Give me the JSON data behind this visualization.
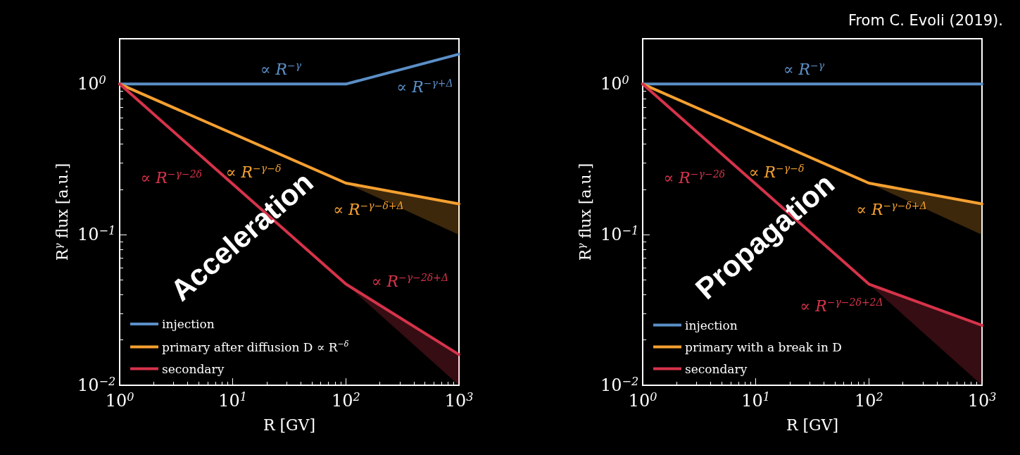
{
  "chart_data": [
    {
      "type": "line",
      "xlabel": "R [GV]",
      "ylabel": "R$^{γ}$ flux [a.u.]",
      "log": "xy",
      "xlim": [
        1,
        1000
      ],
      "ylim": [
        0.01,
        2
      ],
      "xticks": [
        {
          "value": 1,
          "label": "10$^{0}$"
        },
        {
          "value": 10,
          "label": "10$^{1}$"
        },
        {
          "value": 100,
          "label": "10$^{2}$"
        },
        {
          "value": 1000,
          "label": "10$^{3}$"
        }
      ],
      "yticks": [
        {
          "value": 0.01,
          "label": "10$^{−2}$"
        },
        {
          "value": 0.1,
          "label": "10$^{−1}$"
        },
        {
          "value": 1,
          "label": "10$^{0}$"
        }
      ],
      "grid": false,
      "legend": "bottom left",
      "marker": "none",
      "line_style": "solid",
      "x": [
        1,
        100,
        1000
      ],
      "series": [
        {
          "name": "injection",
          "color": "#5b8fc7",
          "values": [
            1,
            1,
            1.58
          ]
        },
        {
          "name": "primary after diffusion D ∝ R$^{−δ}$",
          "color": "#f5a030",
          "values": [
            1,
            0.22,
            0.16
          ],
          "lower": [
            null,
            0.22,
            0.1
          ],
          "upper": [
            null,
            0.22,
            0.16
          ]
        },
        {
          "name": "secondary",
          "color": "#d6334a",
          "values": [
            1,
            0.047,
            0.016
          ],
          "lower": [
            null,
            0.047,
            0.01
          ],
          "upper": [
            null,
            0.047,
            0.016
          ]
        }
      ],
      "annotations": [
        "Acceleration",
        {
          "text": "∝ R$^{−γ}$",
          "x": 15.6,
          "y": 1
        },
        {
          "text": "∝ R$^{−γ+Δ}$",
          "x": 250,
          "y": 1.2
        },
        {
          "text": "∝ R$^{−γ−δ}$",
          "x": 30,
          "y": 0.327
        },
        {
          "text": "∝ R$^{−γ−δ+Δ}$",
          "x": 365,
          "y": 0.184
        },
        {
          "text": "∝ R$^{−γ−2δ}$",
          "x": 6,
          "y": 0.3
        },
        {
          "text": "∝ R$^{−γ−2δ+Δ}$",
          "x": 150,
          "y": 0.039
        }
      ]
    },
    {
      "type": "line",
      "xlabel": "R [GV]",
      "ylabel": "R$^{γ}$ flux [a.u.]",
      "log": "xy",
      "xlim": [
        1,
        1000
      ],
      "ylim": [
        0.01,
        2
      ],
      "xticks": [
        {
          "value": 1,
          "label": "10$^{0}$"
        },
        {
          "value": 10,
          "label": "10$^{1}$"
        },
        {
          "value": 100,
          "label": "10$^{2}$"
        },
        {
          "value": 1000,
          "label": "10$^{3}$"
        }
      ],
      "yticks": [
        {
          "value": 0.01,
          "label": "10$^{−2}$"
        },
        {
          "value": 0.1,
          "label": "10$^{−1}$"
        },
        {
          "value": 1,
          "label": "10$^{0}$"
        }
      ],
      "grid": false,
      "legend": "bottom left",
      "marker": "none",
      "line_style": "solid",
      "x": [
        1,
        100,
        1000
      ],
      "series": [
        {
          "name": "injection",
          "color": "#5b8fc7",
          "values": [
            1,
            1,
            1
          ]
        },
        {
          "name": "primary with a break in D",
          "color": "#f5a030",
          "values": [
            1,
            0.22,
            0.16
          ],
          "lower": [
            null,
            0.22,
            0.1
          ],
          "upper": [
            null,
            0.22,
            0.16
          ]
        },
        {
          "name": "secondary",
          "color": "#d6334a",
          "values": [
            1,
            0.047,
            0.025
          ],
          "lower": [
            null,
            0.047,
            0.01
          ],
          "upper": [
            null,
            0.047,
            0.025
          ]
        }
      ],
      "annotations": [
        "Propagation",
        "From C. Evoli (2019).",
        {
          "text": "∝ R$^{−γ}$",
          "x": 15.6,
          "y": 1
        },
        {
          "text": "∝ R$^{−γ−δ}$",
          "x": 30,
          "y": 0.327
        },
        {
          "text": "∝ R$^{−γ−δ+Δ}$",
          "x": 365,
          "y": 0.184
        },
        {
          "text": "∝ R$^{−γ−2δ}$",
          "x": 6,
          "y": 0.3
        },
        {
          "text": "∝ R$^{−γ−2δ+2Δ}$",
          "x": 150,
          "y": 0.042
        }
      ]
    }
  ]
}
